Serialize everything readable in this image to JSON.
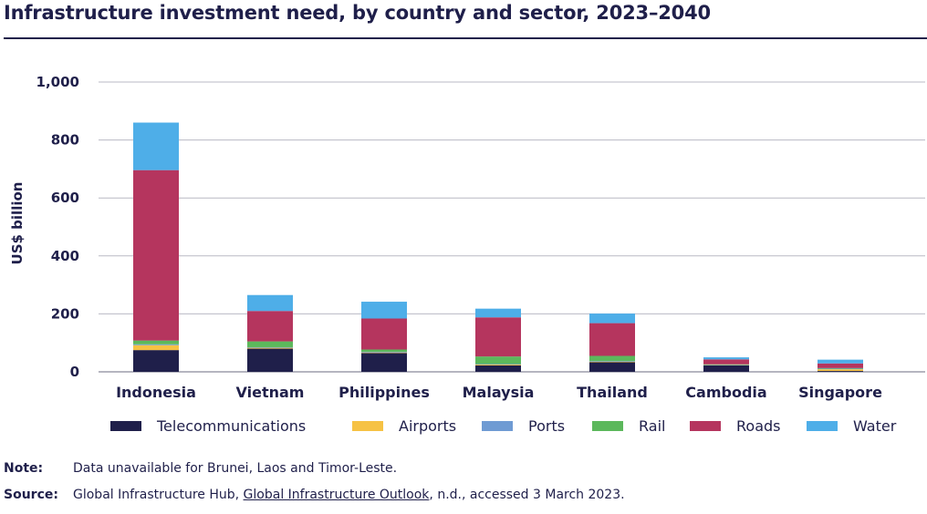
{
  "title": "Infrastructure investment need, by country and sector, 2023–2040",
  "note": {
    "label": "Note:",
    "text": "Data unavailable for Brunei, Laos and Timor-Leste."
  },
  "source": {
    "label": "Source:",
    "prefix": "Global Infrastructure Hub, ",
    "link_text": "Global Infrastructure Outlook",
    "suffix": ", n.d., accessed 3 March 2023."
  },
  "chart_data": {
    "type": "bar",
    "stacked": true,
    "title": "Infrastructure investment need, by country and sector, 2023–2040",
    "ylabel": "US$ billion",
    "xlabel": "",
    "ylim": [
      0,
      1000
    ],
    "yticks": [
      0,
      200,
      400,
      600,
      800,
      1000
    ],
    "ytick_labels": [
      "0",
      "200",
      "400",
      "600",
      "800",
      "1,000"
    ],
    "grid": true,
    "legend_position": "bottom",
    "categories": [
      "Indonesia",
      "Vietnam",
      "Philippines",
      "Malaysia",
      "Thailand",
      "Cambodia",
      "Singapore"
    ],
    "series": [
      {
        "name": "Telecommunications",
        "color": "#1f1f4a",
        "values": [
          75,
          80,
          65,
          22,
          33,
          22,
          3
        ]
      },
      {
        "name": "Airports",
        "color": "#f6c244",
        "values": [
          17,
          3,
          2,
          3,
          2,
          1,
          6
        ]
      },
      {
        "name": "Ports",
        "color": "#6f9bd3",
        "values": [
          3,
          2,
          2,
          2,
          2,
          1,
          2
        ]
      },
      {
        "name": "Rail",
        "color": "#5cb85c",
        "values": [
          13,
          20,
          8,
          26,
          18,
          2,
          2
        ]
      },
      {
        "name": "Roads",
        "color": "#b5355e",
        "values": [
          588,
          105,
          107,
          135,
          113,
          17,
          16
        ]
      },
      {
        "name": "Water",
        "color": "#4eaee8",
        "values": [
          164,
          55,
          58,
          30,
          33,
          7,
          13
        ]
      }
    ]
  }
}
